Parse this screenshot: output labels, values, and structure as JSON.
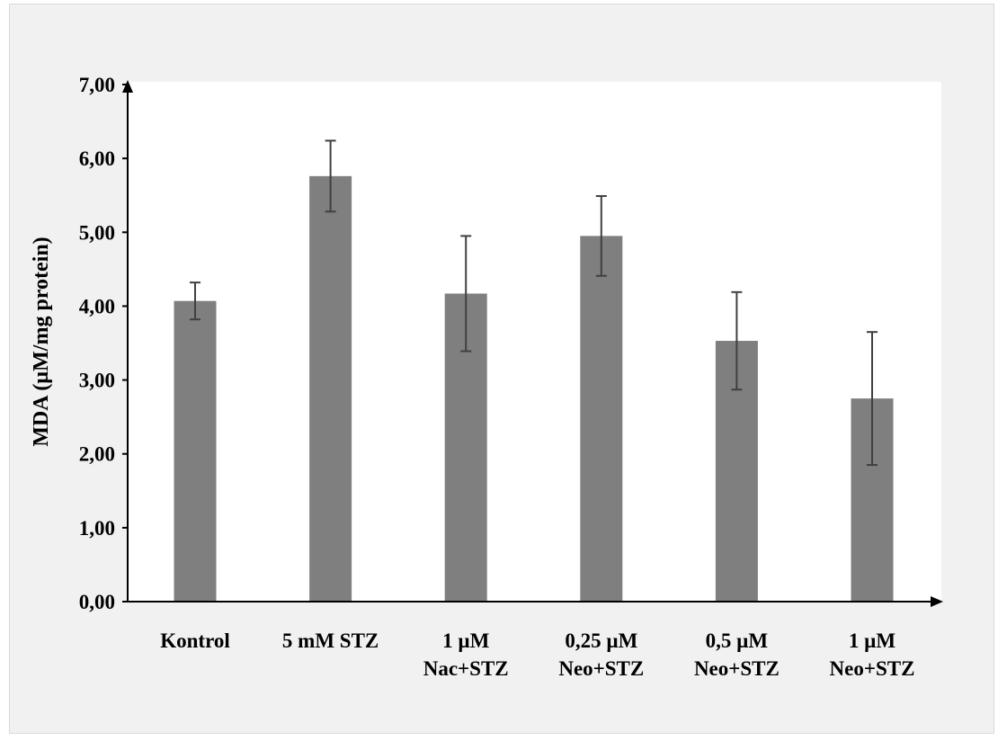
{
  "colors": {
    "bar": "#7f7f7f",
    "error_bar": "#404040",
    "axis": "#000000",
    "plot_bg": "#ffffff",
    "frame_bg": "#f1f1f1"
  },
  "chart_data": {
    "type": "bar",
    "title": "",
    "xlabel": "",
    "ylabel": "MDA (µM/mg protein)",
    "ylim": [
      0,
      7
    ],
    "yticks": [
      "0,00",
      "1,00",
      "2,00",
      "3,00",
      "4,00",
      "5,00",
      "6,00",
      "7,00"
    ],
    "categories": [
      [
        "Kontrol"
      ],
      [
        "5 mM STZ"
      ],
      [
        "1 µM",
        "Nac+STZ"
      ],
      [
        "0,25 µM",
        "Neo+STZ"
      ],
      [
        "0,5 µM",
        "Neo+STZ"
      ],
      [
        "1 µM",
        "Neo+STZ"
      ]
    ],
    "values": [
      4.07,
      5.76,
      4.17,
      4.95,
      3.53,
      2.75
    ],
    "errors": [
      0.25,
      0.48,
      0.78,
      0.54,
      0.66,
      0.9
    ],
    "grid": false,
    "legend": "none"
  }
}
